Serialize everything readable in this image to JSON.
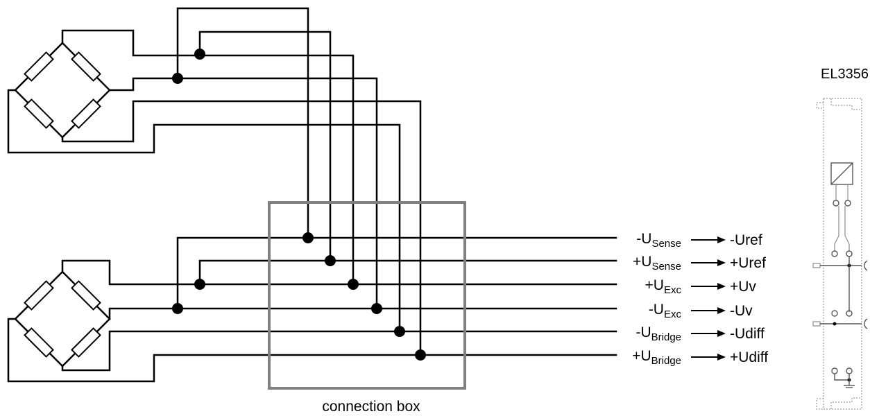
{
  "terminal": {
    "name": "EL3356"
  },
  "connection_box": {
    "label": "connection box"
  },
  "signals": [
    {
      "main": "-U",
      "sub": "Sense",
      "maps_to": "-Uref"
    },
    {
      "main": "+U",
      "sub": "Sense",
      "maps_to": "+Uref"
    },
    {
      "main": "+U",
      "sub": "Exc",
      "maps_to": "+Uv"
    },
    {
      "main": "-U",
      "sub": "Exc",
      "maps_to": "-Uv"
    },
    {
      "main": "-U",
      "sub": "Bridge",
      "maps_to": "-Udiff"
    },
    {
      "main": "+U",
      "sub": "Bridge",
      "maps_to": "+Udiff"
    }
  ],
  "bridges": [
    {
      "id": "bridge-top",
      "resistors": 4
    },
    {
      "id": "bridge-bottom",
      "resistors": 4
    }
  ]
}
